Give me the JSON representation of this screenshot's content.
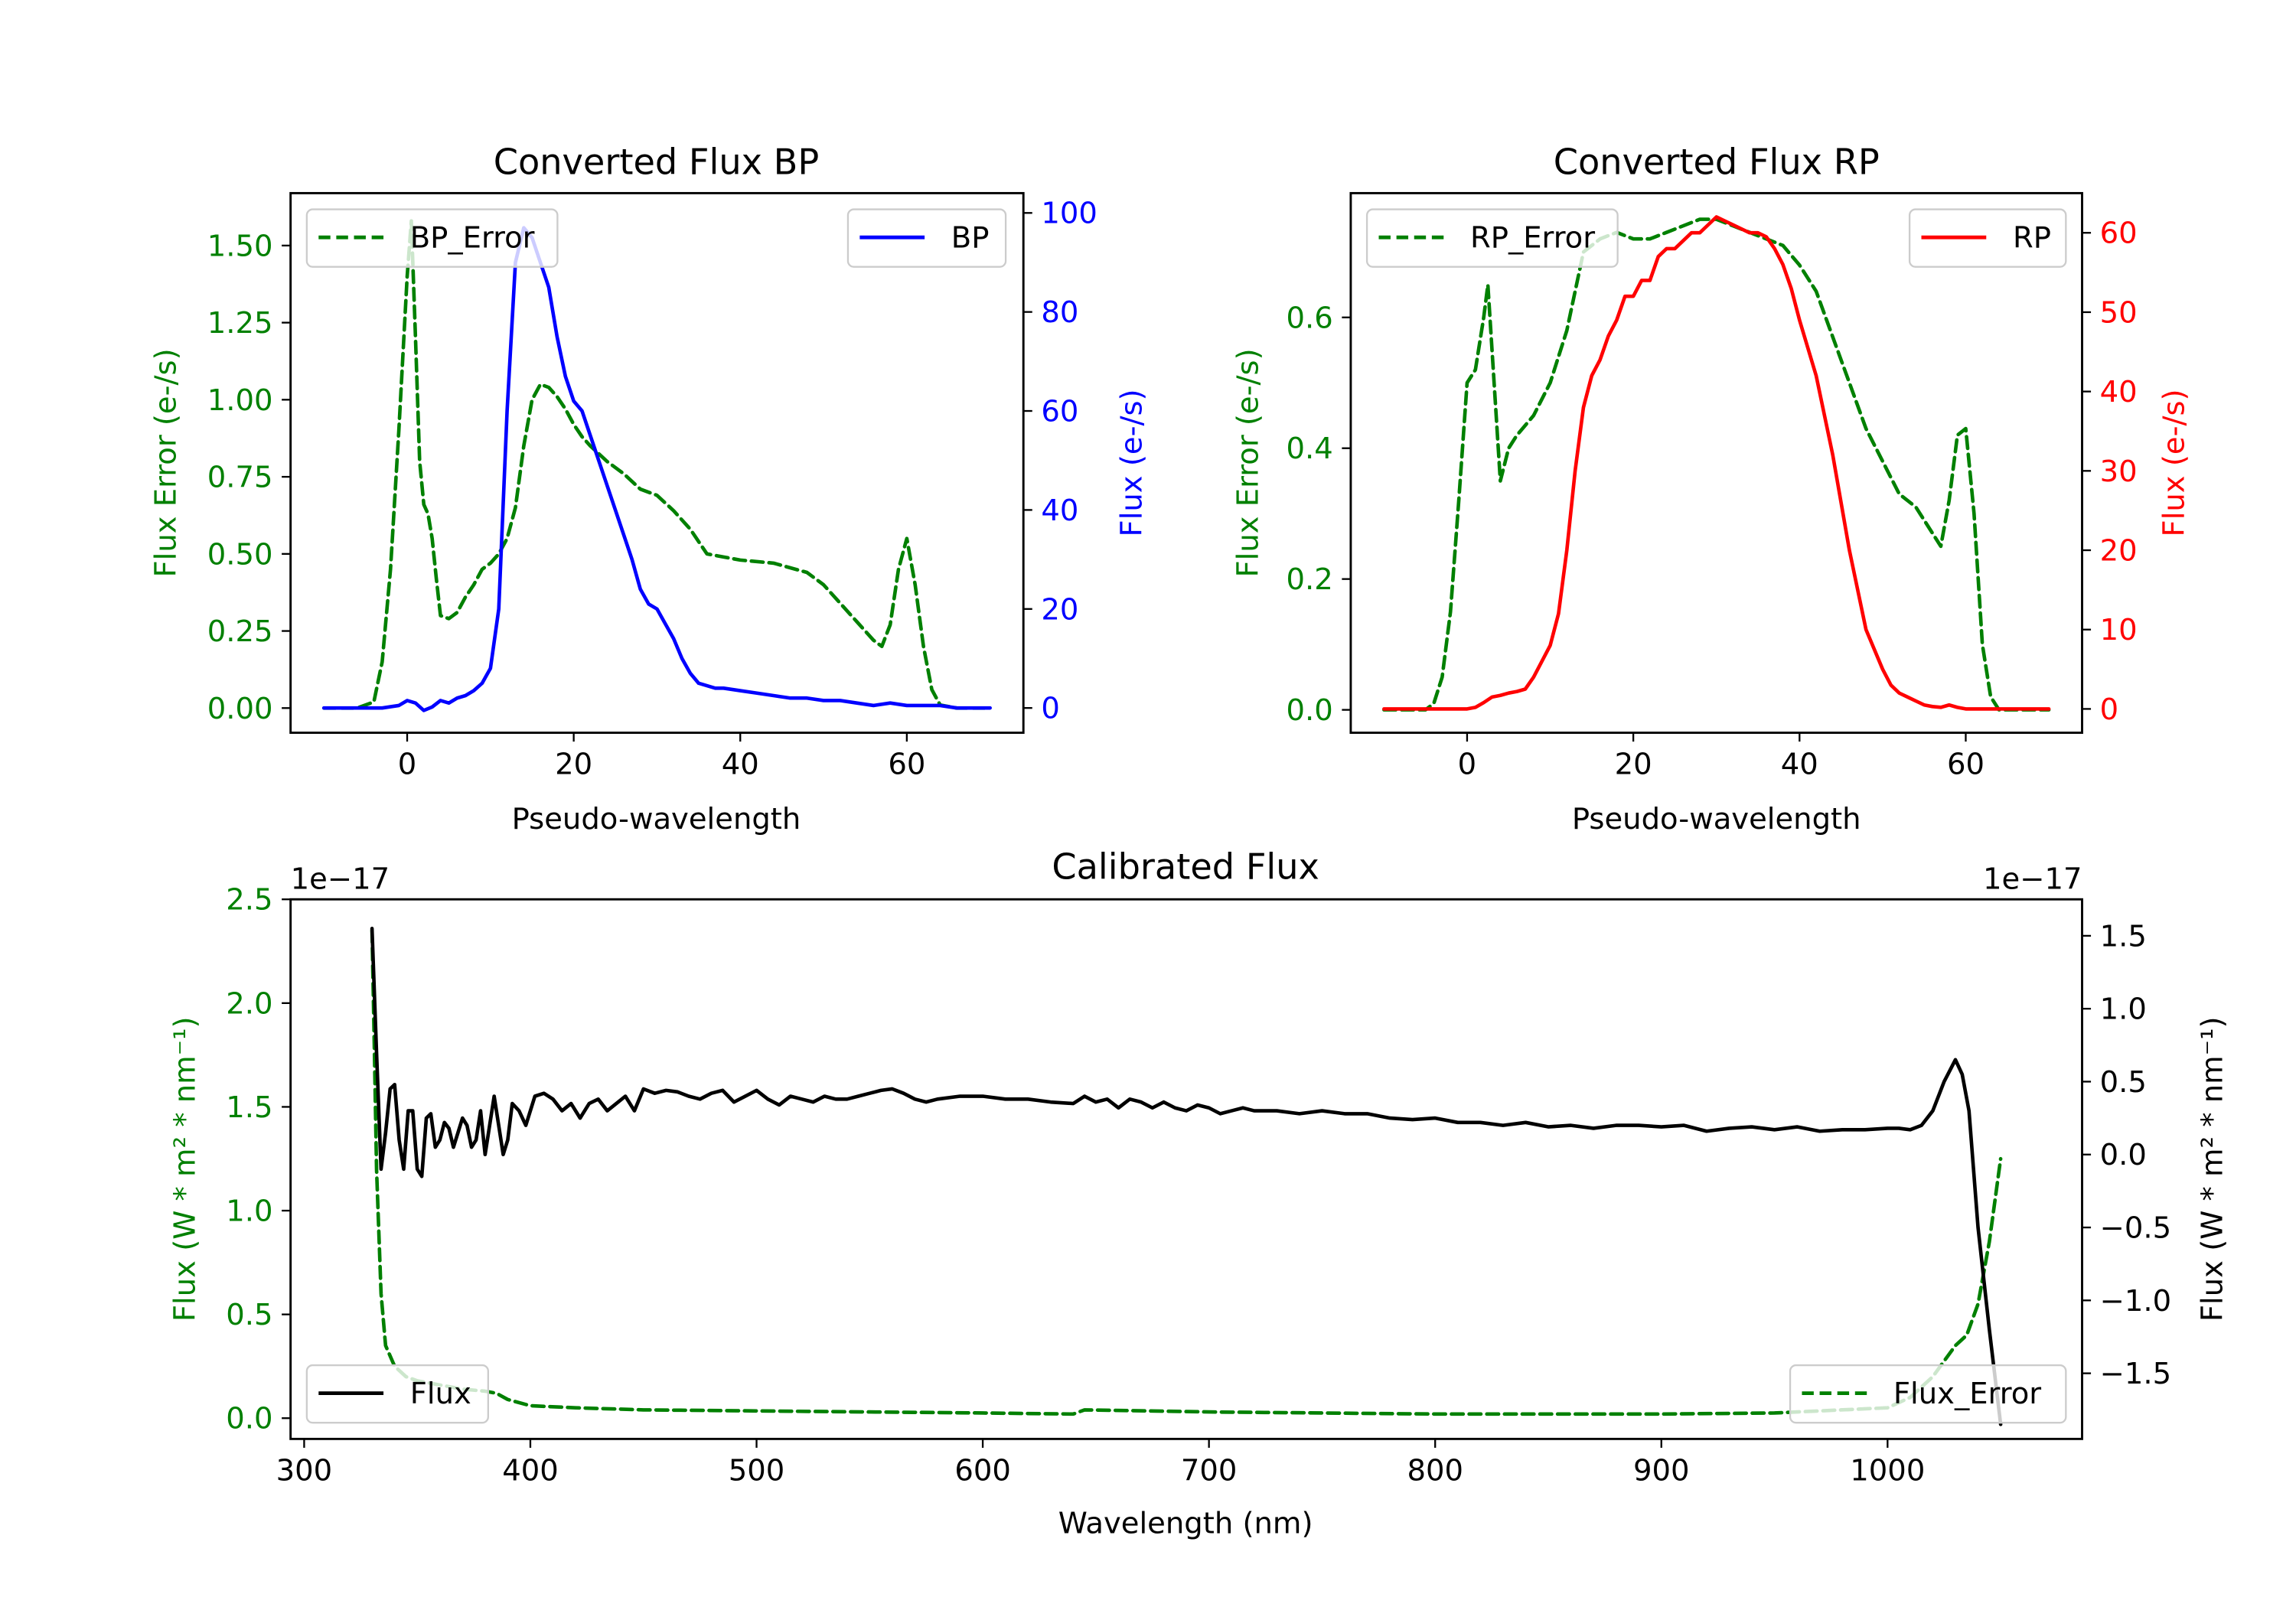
{
  "chart_data": [
    {
      "type": "line",
      "title": "Converted Flux BP",
      "xlabel": "Pseudo-wavelength",
      "ylabel_left": "Flux Error (e-/s)",
      "ylabel_right": "Flux (e-/s)",
      "xlim": [
        -14,
        74
      ],
      "ylim_left": [
        -0.08,
        1.67
      ],
      "ylim_right": [
        -5,
        104
      ],
      "xticks": [
        0,
        20,
        40,
        60
      ],
      "xtick_labels": [
        "0",
        "20",
        "40",
        "60"
      ],
      "yticks_left": [
        0,
        0.25,
        0.5,
        0.75,
        1.0,
        1.25,
        1.5
      ],
      "ytick_labels_left": [
        "0.00",
        "0.25",
        "0.50",
        "0.75",
        "1.00",
        "1.25",
        "1.50"
      ],
      "yticks_right": [
        0,
        20,
        40,
        60,
        80,
        100
      ],
      "ytick_labels_right": [
        "0",
        "20",
        "40",
        "60",
        "80",
        "100"
      ],
      "colors": {
        "left_axis": "#008000",
        "right_axis": "#0000ff"
      },
      "legend_left": {
        "label": "BP_Error",
        "position": "upper-left"
      },
      "legend_right": {
        "label": "BP",
        "position": "upper-right"
      },
      "series": [
        {
          "name": "BP_Error",
          "axis": "left",
          "style": "dashed",
          "color": "#008000",
          "x": [
            -10,
            -6,
            -4,
            -3,
            -2,
            -1,
            0,
            0.5,
            1,
            1.5,
            2,
            2.5,
            3,
            3.5,
            4,
            5,
            6,
            7,
            8,
            9,
            10,
            11,
            12,
            13,
            14,
            15,
            16,
            17,
            18,
            19,
            20,
            21,
            22,
            24,
            26,
            28,
            30,
            32,
            34,
            36,
            38,
            40,
            44,
            48,
            50,
            52,
            54,
            56,
            57,
            58,
            59,
            60,
            61,
            62,
            63,
            64,
            66,
            70
          ],
          "y": [
            0.0,
            0.0,
            0.02,
            0.15,
            0.45,
            0.9,
            1.4,
            1.58,
            1.2,
            0.8,
            0.66,
            0.63,
            0.55,
            0.42,
            0.3,
            0.29,
            0.31,
            0.36,
            0.4,
            0.45,
            0.47,
            0.5,
            0.55,
            0.65,
            0.85,
            1.0,
            1.05,
            1.04,
            1.01,
            0.97,
            0.92,
            0.88,
            0.85,
            0.8,
            0.76,
            0.71,
            0.69,
            0.64,
            0.58,
            0.5,
            0.49,
            0.48,
            0.47,
            0.44,
            0.4,
            0.34,
            0.28,
            0.22,
            0.2,
            0.27,
            0.45,
            0.55,
            0.4,
            0.2,
            0.06,
            0.01,
            0.0,
            0.0
          ]
        },
        {
          "name": "BP",
          "axis": "right",
          "style": "solid",
          "color": "#0000ff",
          "x": [
            -10,
            -5,
            -3,
            -1,
            0,
            1,
            2,
            3,
            4,
            5,
            6,
            7,
            8,
            9,
            10,
            11,
            12,
            13,
            14,
            15,
            16,
            17,
            18,
            19,
            20,
            21,
            22,
            23,
            24,
            25,
            26,
            27,
            28,
            29,
            30,
            31,
            32,
            33,
            34,
            35,
            36,
            37,
            38,
            40,
            42,
            44,
            46,
            48,
            50,
            52,
            54,
            56,
            58,
            60,
            62,
            64,
            66,
            70
          ],
          "y": [
            0,
            0,
            0,
            0.5,
            1.5,
            1,
            -0.5,
            0.2,
            1.5,
            1,
            2,
            2.5,
            3.5,
            5,
            8,
            20,
            60,
            90,
            97,
            95,
            90,
            85,
            75,
            67,
            62,
            60,
            55,
            50,
            45,
            40,
            35,
            30,
            24,
            21,
            20,
            17,
            14,
            10,
            7,
            5,
            4.5,
            4,
            4,
            3.5,
            3,
            2.5,
            2,
            2,
            1.5,
            1.5,
            1,
            0.5,
            1,
            0.5,
            0.5,
            0.5,
            0,
            0
          ]
        }
      ]
    },
    {
      "type": "line",
      "title": "Converted Flux RP",
      "xlabel": "Pseudo-wavelength",
      "ylabel_left": "Flux Error (e-/s)",
      "ylabel_right": "Flux (e-/s)",
      "xlim": [
        -14,
        74
      ],
      "ylim_left": [
        -0.035,
        0.79
      ],
      "ylim_right": [
        -3,
        65
      ],
      "xticks": [
        0,
        20,
        40,
        60
      ],
      "xtick_labels": [
        "0",
        "20",
        "40",
        "60"
      ],
      "yticks_left": [
        0,
        0.2,
        0.4,
        0.6
      ],
      "ytick_labels_left": [
        "0.0",
        "0.2",
        "0.4",
        "0.6"
      ],
      "yticks_right": [
        0,
        10,
        20,
        30,
        40,
        50,
        60
      ],
      "ytick_labels_right": [
        "0",
        "10",
        "20",
        "30",
        "40",
        "50",
        "60"
      ],
      "colors": {
        "left_axis": "#008000",
        "right_axis": "#ff0000"
      },
      "legend_left": {
        "label": "RP_Error",
        "position": "upper-left"
      },
      "legend_right": {
        "label": "RP",
        "position": "upper-right"
      },
      "series": [
        {
          "name": "RP_Error",
          "axis": "left",
          "style": "dashed",
          "color": "#008000",
          "x": [
            -10,
            -5,
            -4,
            -3,
            -2,
            -1,
            0,
            1,
            2,
            2.5,
            3,
            4,
            5,
            6,
            8,
            10,
            12,
            14,
            16,
            18,
            20,
            22,
            24,
            26,
            28,
            30,
            32,
            34,
            36,
            38,
            40,
            42,
            44,
            46,
            48,
            50,
            52,
            54,
            56,
            57,
            58,
            59,
            60,
            61,
            62,
            63,
            64,
            66,
            70
          ],
          "y": [
            0.0,
            0.0,
            0.01,
            0.05,
            0.15,
            0.32,
            0.5,
            0.52,
            0.6,
            0.65,
            0.55,
            0.35,
            0.4,
            0.42,
            0.45,
            0.5,
            0.58,
            0.7,
            0.72,
            0.73,
            0.72,
            0.72,
            0.73,
            0.74,
            0.75,
            0.75,
            0.74,
            0.73,
            0.72,
            0.71,
            0.68,
            0.64,
            0.57,
            0.5,
            0.43,
            0.38,
            0.33,
            0.31,
            0.27,
            0.25,
            0.32,
            0.42,
            0.43,
            0.3,
            0.1,
            0.02,
            0.0,
            0.0,
            0.0
          ]
        },
        {
          "name": "RP",
          "axis": "right",
          "style": "solid",
          "color": "#ff0000",
          "x": [
            -10,
            -2,
            0,
            1,
            2,
            3,
            4,
            5,
            6,
            7,
            8,
            9,
            10,
            11,
            12,
            13,
            14,
            15,
            16,
            17,
            18,
            19,
            20,
            21,
            22,
            23,
            24,
            25,
            26,
            27,
            28,
            29,
            30,
            31,
            32,
            33,
            34,
            35,
            36,
            37,
            38,
            39,
            40,
            42,
            44,
            46,
            48,
            50,
            51,
            52,
            53,
            54,
            55,
            56,
            57,
            58,
            59,
            60,
            62,
            64,
            66,
            70
          ],
          "y": [
            0,
            0,
            0,
            0.2,
            0.8,
            1.5,
            1.7,
            2,
            2.2,
            2.5,
            4,
            6,
            8,
            12,
            20,
            30,
            38,
            42,
            44,
            47,
            49,
            52,
            52,
            54,
            54,
            57,
            58,
            58,
            59,
            60,
            60,
            61,
            62,
            61.5,
            61,
            60.5,
            60,
            60,
            59.5,
            58,
            56,
            53,
            49,
            42,
            32,
            20,
            10,
            5,
            3,
            2,
            1.5,
            1,
            0.5,
            0.3,
            0.2,
            0.5,
            0.2,
            0,
            0,
            0,
            0,
            0
          ]
        }
      ]
    },
    {
      "type": "line",
      "title": "Calibrated Flux",
      "xlabel": "Wavelength (nm)",
      "ylabel_left": "Flux (W * m² * nm⁻¹)",
      "ylabel_right": "Flux (W * m² * nm⁻¹)",
      "offset_left": "1e−17",
      "offset_right": "1e−17",
      "xlim": [
        294,
        1086
      ],
      "ylim_left": [
        -0.1,
        2.5
      ],
      "ylim_right": [
        -1.95,
        1.75
      ],
      "xticks": [
        300,
        400,
        500,
        600,
        700,
        800,
        900,
        1000
      ],
      "xtick_labels": [
        "300",
        "400",
        "500",
        "600",
        "700",
        "800",
        "900",
        "1000"
      ],
      "yticks_left": [
        0,
        0.5,
        1.0,
        1.5,
        2.0,
        2.5
      ],
      "ytick_labels_left": [
        "0.0",
        "0.5",
        "1.0",
        "1.5",
        "2.0",
        "2.5"
      ],
      "yticks_right": [
        -1.5,
        -1.0,
        -0.5,
        0.0,
        0.5,
        1.0,
        1.5
      ],
      "ytick_labels_right": [
        "−1.5",
        "−1.0",
        "−0.5",
        "0.0",
        "0.5",
        "1.0",
        "1.5"
      ],
      "colors": {
        "left_axis": "#008000",
        "right_axis": "#000000"
      },
      "legend_left": {
        "label": "Flux",
        "position": "lower-left"
      },
      "legend_right": {
        "label": "Flux_Error",
        "position": "lower-right"
      },
      "series": [
        {
          "name": "Flux_Error",
          "axis": "left",
          "style": "dashed",
          "color": "#008000",
          "x": [
            330,
            331,
            332,
            334,
            336,
            340,
            345,
            350,
            360,
            370,
            380,
            385,
            390,
            400,
            420,
            450,
            500,
            550,
            600,
            640,
            645,
            700,
            750,
            800,
            850,
            900,
            950,
            1000,
            1010,
            1020,
            1030,
            1035,
            1040,
            1045,
            1050
          ],
          "y": [
            2.35,
            1.8,
            1.2,
            0.6,
            0.35,
            0.25,
            0.2,
            0.18,
            0.16,
            0.14,
            0.13,
            0.12,
            0.09,
            0.06,
            0.05,
            0.04,
            0.035,
            0.03,
            0.025,
            0.02,
            0.04,
            0.03,
            0.025,
            0.02,
            0.02,
            0.02,
            0.025,
            0.05,
            0.1,
            0.2,
            0.35,
            0.4,
            0.55,
            0.85,
            1.25
          ]
        },
        {
          "name": "Flux",
          "axis": "right",
          "style": "solid",
          "color": "#000000",
          "x": [
            330,
            332,
            334,
            336,
            338,
            340,
            342,
            344,
            346,
            348,
            350,
            352,
            354,
            356,
            358,
            360,
            362,
            364,
            366,
            368,
            370,
            372,
            374,
            376,
            378,
            380,
            382,
            384,
            386,
            388,
            390,
            392,
            395,
            398,
            402,
            406,
            410,
            414,
            418,
            422,
            426,
            430,
            434,
            438,
            442,
            446,
            450,
            455,
            460,
            465,
            470,
            475,
            480,
            485,
            490,
            495,
            500,
            505,
            510,
            515,
            520,
            525,
            530,
            535,
            540,
            545,
            550,
            555,
            560,
            565,
            570,
            575,
            580,
            590,
            600,
            610,
            620,
            630,
            640,
            645,
            650,
            655,
            660,
            665,
            670,
            675,
            680,
            685,
            690,
            695,
            700,
            705,
            710,
            715,
            720,
            730,
            740,
            750,
            760,
            770,
            780,
            790,
            800,
            810,
            820,
            830,
            840,
            850,
            860,
            870,
            880,
            890,
            900,
            910,
            920,
            930,
            940,
            950,
            960,
            970,
            980,
            990,
            1000,
            1005,
            1010,
            1015,
            1020,
            1025,
            1030,
            1033,
            1036,
            1040,
            1045,
            1050
          ],
          "y": [
            1.55,
            0.7,
            -0.1,
            0.15,
            0.45,
            0.48,
            0.1,
            -0.1,
            0.3,
            0.3,
            -0.1,
            -0.15,
            0.25,
            0.28,
            0.05,
            0.1,
            0.22,
            0.18,
            0.05,
            0.15,
            0.25,
            0.2,
            0.05,
            0.1,
            0.3,
            0.0,
            0.2,
            0.4,
            0.2,
            0.0,
            0.1,
            0.35,
            0.3,
            0.2,
            0.4,
            0.42,
            0.38,
            0.3,
            0.35,
            0.25,
            0.35,
            0.38,
            0.3,
            0.35,
            0.4,
            0.3,
            0.45,
            0.42,
            0.44,
            0.43,
            0.4,
            0.38,
            0.42,
            0.44,
            0.36,
            0.4,
            0.44,
            0.38,
            0.34,
            0.4,
            0.38,
            0.36,
            0.4,
            0.38,
            0.38,
            0.4,
            0.42,
            0.44,
            0.45,
            0.42,
            0.38,
            0.36,
            0.38,
            0.4,
            0.4,
            0.38,
            0.38,
            0.36,
            0.35,
            0.4,
            0.36,
            0.38,
            0.32,
            0.38,
            0.36,
            0.32,
            0.36,
            0.32,
            0.3,
            0.34,
            0.32,
            0.28,
            0.3,
            0.32,
            0.3,
            0.3,
            0.28,
            0.3,
            0.28,
            0.28,
            0.25,
            0.24,
            0.25,
            0.22,
            0.22,
            0.2,
            0.22,
            0.19,
            0.2,
            0.18,
            0.2,
            0.2,
            0.19,
            0.2,
            0.16,
            0.18,
            0.19,
            0.17,
            0.19,
            0.16,
            0.17,
            0.17,
            0.18,
            0.18,
            0.17,
            0.2,
            0.3,
            0.5,
            0.65,
            0.55,
            0.3,
            -0.5,
            -1.2,
            -1.85
          ]
        }
      ]
    }
  ]
}
